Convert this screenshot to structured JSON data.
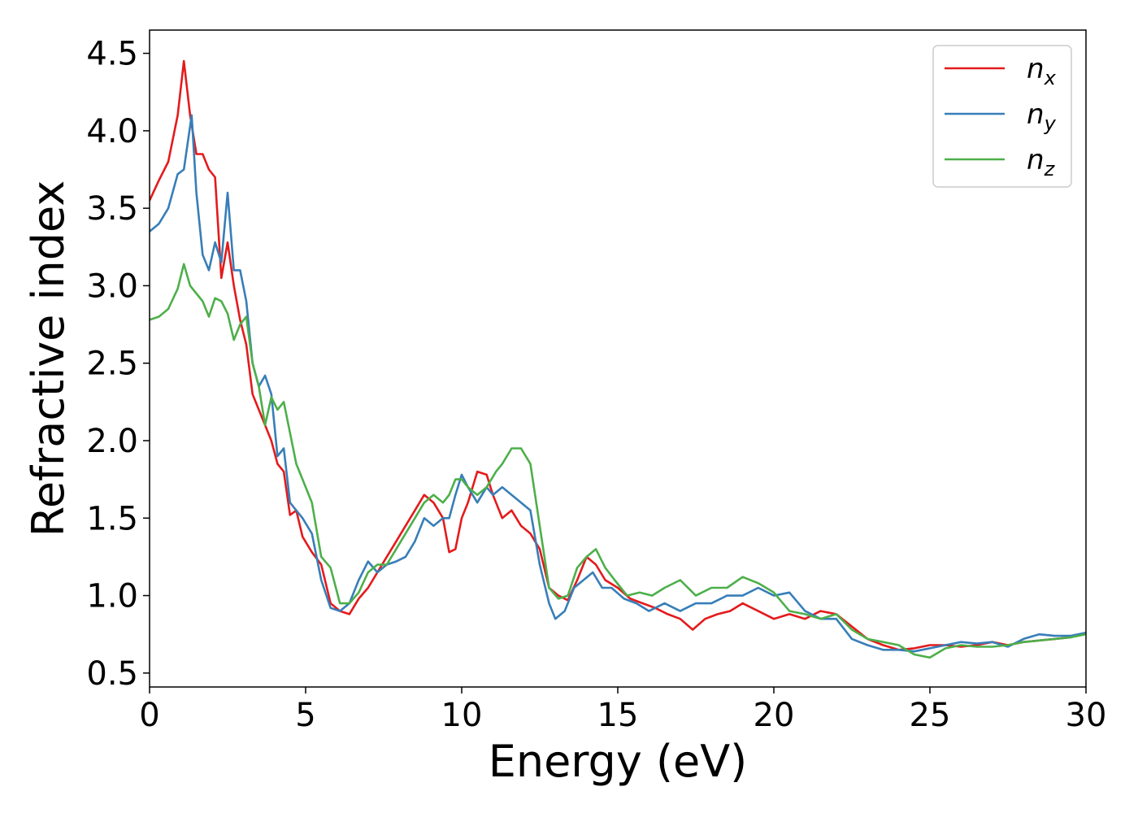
{
  "chart_data": {
    "type": "line",
    "xlabel": "Energy (eV)",
    "ylabel": "Refractive index",
    "xlim": [
      0,
      30
    ],
    "ylim": [
      0.41,
      4.65
    ],
    "xticks": [
      0,
      5,
      10,
      15,
      20,
      25,
      30
    ],
    "yticks": [
      0.5,
      1.0,
      1.5,
      2.0,
      2.5,
      3.0,
      3.5,
      4.0,
      4.5
    ],
    "xtick_labels": [
      "0",
      "5",
      "10",
      "15",
      "20",
      "25",
      "30"
    ],
    "ytick_labels": [
      "0.5",
      "1.0",
      "1.5",
      "2.0",
      "2.5",
      "3.0",
      "3.5",
      "4.0",
      "4.5"
    ],
    "grid": false,
    "legend": "top-right",
    "series": [
      {
        "name": "n",
        "subscript": "x",
        "color": "#e41a1c",
        "points": [
          [
            0,
            3.55
          ],
          [
            0.3,
            3.68
          ],
          [
            0.6,
            3.8
          ],
          [
            0.9,
            4.1
          ],
          [
            1.1,
            4.45
          ],
          [
            1.3,
            4.1
          ],
          [
            1.5,
            3.85
          ],
          [
            1.7,
            3.85
          ],
          [
            1.9,
            3.75
          ],
          [
            2.1,
            3.7
          ],
          [
            2.3,
            3.05
          ],
          [
            2.5,
            3.28
          ],
          [
            2.7,
            3.0
          ],
          [
            2.9,
            2.78
          ],
          [
            3.1,
            2.62
          ],
          [
            3.3,
            2.3
          ],
          [
            3.5,
            2.2
          ],
          [
            3.7,
            2.1
          ],
          [
            3.9,
            2.0
          ],
          [
            4.1,
            1.85
          ],
          [
            4.3,
            1.8
          ],
          [
            4.5,
            1.52
          ],
          [
            4.7,
            1.55
          ],
          [
            4.9,
            1.38
          ],
          [
            5.2,
            1.28
          ],
          [
            5.5,
            1.2
          ],
          [
            5.8,
            0.95
          ],
          [
            6.1,
            0.9
          ],
          [
            6.4,
            0.88
          ],
          [
            6.7,
            0.98
          ],
          [
            7.0,
            1.05
          ],
          [
            7.3,
            1.15
          ],
          [
            7.6,
            1.25
          ],
          [
            7.9,
            1.35
          ],
          [
            8.2,
            1.45
          ],
          [
            8.5,
            1.55
          ],
          [
            8.8,
            1.65
          ],
          [
            9.1,
            1.6
          ],
          [
            9.4,
            1.5
          ],
          [
            9.6,
            1.28
          ],
          [
            9.8,
            1.3
          ],
          [
            10.0,
            1.5
          ],
          [
            10.2,
            1.6
          ],
          [
            10.5,
            1.8
          ],
          [
            10.8,
            1.78
          ],
          [
            11.0,
            1.65
          ],
          [
            11.3,
            1.5
          ],
          [
            11.6,
            1.55
          ],
          [
            11.9,
            1.45
          ],
          [
            12.2,
            1.4
          ],
          [
            12.5,
            1.3
          ],
          [
            12.8,
            1.05
          ],
          [
            13.1,
            1.0
          ],
          [
            13.4,
            0.97
          ],
          [
            13.7,
            1.1
          ],
          [
            14.0,
            1.25
          ],
          [
            14.3,
            1.2
          ],
          [
            14.6,
            1.1
          ],
          [
            15.0,
            1.05
          ],
          [
            15.4,
            0.98
          ],
          [
            15.8,
            0.95
          ],
          [
            16.2,
            0.92
          ],
          [
            16.6,
            0.88
          ],
          [
            17.0,
            0.85
          ],
          [
            17.4,
            0.78
          ],
          [
            17.8,
            0.85
          ],
          [
            18.2,
            0.88
          ],
          [
            18.6,
            0.9
          ],
          [
            19.0,
            0.95
          ],
          [
            19.5,
            0.9
          ],
          [
            20.0,
            0.85
          ],
          [
            20.5,
            0.88
          ],
          [
            21.0,
            0.85
          ],
          [
            21.5,
            0.9
          ],
          [
            22.0,
            0.88
          ],
          [
            22.5,
            0.8
          ],
          [
            23.0,
            0.72
          ],
          [
            23.5,
            0.68
          ],
          [
            24.0,
            0.65
          ],
          [
            24.5,
            0.66
          ],
          [
            25.0,
            0.68
          ],
          [
            25.5,
            0.68
          ],
          [
            26.0,
            0.67
          ],
          [
            26.5,
            0.68
          ],
          [
            27.0,
            0.7
          ],
          [
            27.5,
            0.68
          ],
          [
            28.0,
            0.7
          ],
          [
            28.5,
            0.71
          ],
          [
            29.0,
            0.72
          ],
          [
            29.5,
            0.73
          ],
          [
            30.0,
            0.76
          ]
        ]
      },
      {
        "name": "n",
        "subscript": "y",
        "color": "#377eb8",
        "points": [
          [
            0,
            3.35
          ],
          [
            0.3,
            3.4
          ],
          [
            0.6,
            3.5
          ],
          [
            0.9,
            3.72
          ],
          [
            1.1,
            3.75
          ],
          [
            1.35,
            4.1
          ],
          [
            1.5,
            3.6
          ],
          [
            1.7,
            3.2
          ],
          [
            1.9,
            3.1
          ],
          [
            2.1,
            3.28
          ],
          [
            2.3,
            3.15
          ],
          [
            2.5,
            3.6
          ],
          [
            2.7,
            3.1
          ],
          [
            2.9,
            3.1
          ],
          [
            3.1,
            2.9
          ],
          [
            3.3,
            2.5
          ],
          [
            3.5,
            2.35
          ],
          [
            3.7,
            2.42
          ],
          [
            3.9,
            2.3
          ],
          [
            4.1,
            1.9
          ],
          [
            4.3,
            1.95
          ],
          [
            4.5,
            1.6
          ],
          [
            4.7,
            1.55
          ],
          [
            4.9,
            1.5
          ],
          [
            5.2,
            1.4
          ],
          [
            5.5,
            1.1
          ],
          [
            5.8,
            0.92
          ],
          [
            6.1,
            0.9
          ],
          [
            6.4,
            0.95
          ],
          [
            6.7,
            1.1
          ],
          [
            7.0,
            1.22
          ],
          [
            7.3,
            1.15
          ],
          [
            7.6,
            1.2
          ],
          [
            7.9,
            1.22
          ],
          [
            8.2,
            1.25
          ],
          [
            8.5,
            1.35
          ],
          [
            8.8,
            1.5
          ],
          [
            9.1,
            1.45
          ],
          [
            9.4,
            1.5
          ],
          [
            9.6,
            1.5
          ],
          [
            9.8,
            1.65
          ],
          [
            10.0,
            1.78
          ],
          [
            10.2,
            1.7
          ],
          [
            10.5,
            1.6
          ],
          [
            10.8,
            1.7
          ],
          [
            11.0,
            1.65
          ],
          [
            11.3,
            1.7
          ],
          [
            11.6,
            1.65
          ],
          [
            11.9,
            1.6
          ],
          [
            12.2,
            1.55
          ],
          [
            12.5,
            1.2
          ],
          [
            12.8,
            0.95
          ],
          [
            13.0,
            0.85
          ],
          [
            13.3,
            0.9
          ],
          [
            13.6,
            1.05
          ],
          [
            13.9,
            1.1
          ],
          [
            14.2,
            1.15
          ],
          [
            14.5,
            1.05
          ],
          [
            14.8,
            1.05
          ],
          [
            15.2,
            0.98
          ],
          [
            15.6,
            0.95
          ],
          [
            16.0,
            0.9
          ],
          [
            16.5,
            0.95
          ],
          [
            17.0,
            0.9
          ],
          [
            17.5,
            0.95
          ],
          [
            18.0,
            0.95
          ],
          [
            18.5,
            1.0
          ],
          [
            19.0,
            1.0
          ],
          [
            19.5,
            1.05
          ],
          [
            20.0,
            1.0
          ],
          [
            20.5,
            1.02
          ],
          [
            21.0,
            0.9
          ],
          [
            21.5,
            0.85
          ],
          [
            22.0,
            0.85
          ],
          [
            22.5,
            0.72
          ],
          [
            23.0,
            0.68
          ],
          [
            23.5,
            0.65
          ],
          [
            24.0,
            0.65
          ],
          [
            24.5,
            0.64
          ],
          [
            25.0,
            0.66
          ],
          [
            25.5,
            0.68
          ],
          [
            26.0,
            0.7
          ],
          [
            26.5,
            0.69
          ],
          [
            27.0,
            0.7
          ],
          [
            27.5,
            0.67
          ],
          [
            28.0,
            0.72
          ],
          [
            28.5,
            0.75
          ],
          [
            29.0,
            0.74
          ],
          [
            29.5,
            0.74
          ],
          [
            30.0,
            0.76
          ]
        ]
      },
      {
        "name": "n",
        "subscript": "z",
        "color": "#4daf4a",
        "points": [
          [
            0,
            2.78
          ],
          [
            0.3,
            2.8
          ],
          [
            0.6,
            2.85
          ],
          [
            0.9,
            2.98
          ],
          [
            1.1,
            3.14
          ],
          [
            1.3,
            3.0
          ],
          [
            1.5,
            2.95
          ],
          [
            1.7,
            2.9
          ],
          [
            1.9,
            2.8
          ],
          [
            2.1,
            2.92
          ],
          [
            2.3,
            2.9
          ],
          [
            2.5,
            2.82
          ],
          [
            2.7,
            2.65
          ],
          [
            2.9,
            2.75
          ],
          [
            3.1,
            2.8
          ],
          [
            3.3,
            2.5
          ],
          [
            3.5,
            2.35
          ],
          [
            3.7,
            2.1
          ],
          [
            3.9,
            2.28
          ],
          [
            4.1,
            2.2
          ],
          [
            4.3,
            2.25
          ],
          [
            4.5,
            2.05
          ],
          [
            4.7,
            1.85
          ],
          [
            4.9,
            1.75
          ],
          [
            5.2,
            1.6
          ],
          [
            5.5,
            1.25
          ],
          [
            5.8,
            1.18
          ],
          [
            6.1,
            0.95
          ],
          [
            6.4,
            0.95
          ],
          [
            6.7,
            1.02
          ],
          [
            7.0,
            1.15
          ],
          [
            7.3,
            1.2
          ],
          [
            7.6,
            1.2
          ],
          [
            7.9,
            1.3
          ],
          [
            8.2,
            1.4
          ],
          [
            8.5,
            1.5
          ],
          [
            8.8,
            1.6
          ],
          [
            9.1,
            1.65
          ],
          [
            9.4,
            1.6
          ],
          [
            9.6,
            1.65
          ],
          [
            9.8,
            1.75
          ],
          [
            10.0,
            1.75
          ],
          [
            10.2,
            1.7
          ],
          [
            10.5,
            1.65
          ],
          [
            10.8,
            1.7
          ],
          [
            11.1,
            1.8
          ],
          [
            11.3,
            1.85
          ],
          [
            11.6,
            1.95
          ],
          [
            11.9,
            1.95
          ],
          [
            12.2,
            1.85
          ],
          [
            12.5,
            1.45
          ],
          [
            12.8,
            1.05
          ],
          [
            13.1,
            0.98
          ],
          [
            13.4,
            1.0
          ],
          [
            13.7,
            1.18
          ],
          [
            14.0,
            1.25
          ],
          [
            14.3,
            1.3
          ],
          [
            14.6,
            1.18
          ],
          [
            14.9,
            1.1
          ],
          [
            15.3,
            1.0
          ],
          [
            15.7,
            1.02
          ],
          [
            16.1,
            1.0
          ],
          [
            16.5,
            1.05
          ],
          [
            17.0,
            1.1
          ],
          [
            17.5,
            1.0
          ],
          [
            18.0,
            1.05
          ],
          [
            18.5,
            1.05
          ],
          [
            19.0,
            1.12
          ],
          [
            19.5,
            1.08
          ],
          [
            20.0,
            1.02
          ],
          [
            20.5,
            0.9
          ],
          [
            21.0,
            0.88
          ],
          [
            21.5,
            0.85
          ],
          [
            22.0,
            0.88
          ],
          [
            22.5,
            0.78
          ],
          [
            23.0,
            0.72
          ],
          [
            23.5,
            0.7
          ],
          [
            24.0,
            0.68
          ],
          [
            24.5,
            0.62
          ],
          [
            25.0,
            0.6
          ],
          [
            25.5,
            0.66
          ],
          [
            26.0,
            0.68
          ],
          [
            26.5,
            0.67
          ],
          [
            27.0,
            0.67
          ],
          [
            27.5,
            0.68
          ],
          [
            28.0,
            0.7
          ],
          [
            28.5,
            0.71
          ],
          [
            29.0,
            0.72
          ],
          [
            29.5,
            0.73
          ],
          [
            30.0,
            0.75
          ]
        ]
      }
    ]
  }
}
